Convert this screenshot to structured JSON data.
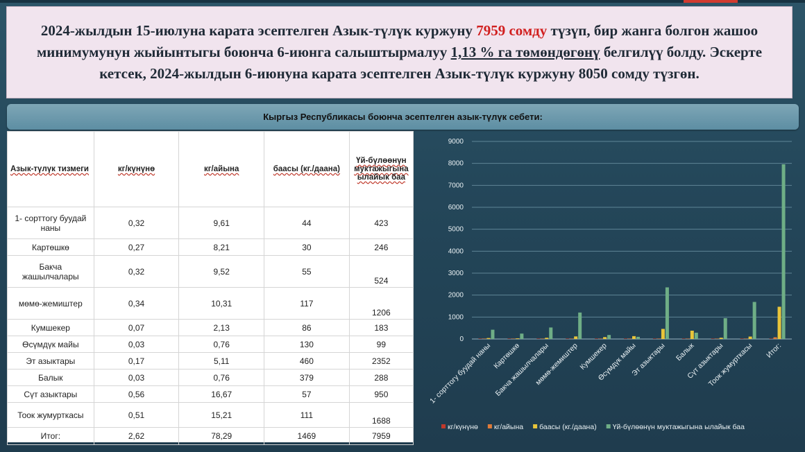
{
  "header": {
    "part1": "2024-жылдын 15-июлуна карата эсептелген Азык-түлүк куржуну ",
    "highlight": "7959 сомду",
    "part2": " түзүп, бир жанга болгон жашоо минимумунун жыйынтыгы боюнча 6-июнга салыштырмалуу ",
    "underlined": "1,13 % га төмөндөгөнү",
    "part3": " белгилүү болду. Эскерте кетсек, 2024-жылдын 6-июнуна карата эсептелген Азык-түлүк куржуну 8050 сомду түзгөн."
  },
  "table_title": "Кыргыз Республикасы боюнча эсептелген азык-түлүк себети:",
  "table": {
    "columns": [
      "Азык-түлүк тизмеги",
      "кг/күнүнө",
      "кг/айына",
      "баасы (кг./даана)",
      "Үй-бүлөөнүн муктажыгына ылайык баа"
    ],
    "rows": [
      [
        "1- сорттогу буудай наны",
        "0,32",
        "9,61",
        "44",
        "423"
      ],
      [
        "Картөшкө",
        "0,27",
        "8,21",
        "30",
        "246"
      ],
      [
        "Бакча жашылчалары",
        "0,32",
        "9,52",
        "55",
        "524"
      ],
      [
        "мөмө-жемиштер",
        "0,34",
        "10,31",
        "117",
        "1206"
      ],
      [
        "Кумшекер",
        "0,07",
        "2,13",
        "86",
        "183"
      ],
      [
        "Өсүмдүк майы",
        "0,03",
        "0,76",
        "130",
        "99"
      ],
      [
        "Эт азыктары",
        "0,17",
        "5,11",
        "460",
        "2352"
      ],
      [
        "Балык",
        "0,03",
        "0,76",
        "379",
        "288"
      ],
      [
        "Сүт азыктары",
        "0,56",
        "16,67",
        "57",
        "950"
      ],
      [
        "Тоок жумурткасы",
        "0,51",
        "15,21",
        "111",
        "1688"
      ],
      [
        "Итог:",
        "2,62",
        "78,29",
        "1469",
        "7959"
      ]
    ]
  },
  "chart_data": {
    "type": "bar",
    "categories": [
      "1- сорттогу буудай наны",
      "Картөшкө",
      "Бакча жашылчалары",
      "мөмө-жемиштер",
      "Кумшекер",
      "Өсүмдүк майы",
      "Эт азыктары",
      "Балык",
      "Сүт азыктары",
      "Тоок жумурткасы",
      "Итог:"
    ],
    "series": [
      {
        "name": "кг/күнүнө",
        "color": "#c0392b",
        "values": [
          0.32,
          0.27,
          0.32,
          0.34,
          0.07,
          0.03,
          0.17,
          0.03,
          0.56,
          0.51,
          2.62
        ]
      },
      {
        "name": "кг/айына",
        "color": "#e07b39",
        "values": [
          9.61,
          8.21,
          9.52,
          10.31,
          2.13,
          0.76,
          5.11,
          0.76,
          16.67,
          15.21,
          78.29
        ]
      },
      {
        "name": "баасы (кг./даана)",
        "color": "#e8c53a",
        "values": [
          44,
          30,
          55,
          117,
          86,
          130,
          460,
          379,
          57,
          111,
          1469
        ]
      },
      {
        "name": "Үй-бүлөөнүн муктажыгына ылайык баа",
        "color": "#6fae86",
        "values": [
          423,
          246,
          524,
          1206,
          183,
          99,
          2352,
          288,
          950,
          1688,
          7959
        ]
      }
    ],
    "yticks": [
      "0",
      "1000",
      "2000",
      "3000",
      "4000",
      "5000",
      "6000",
      "7000",
      "8000",
      "9000"
    ],
    "ylim": [
      0,
      9000
    ],
    "grid": true,
    "legend": "bottom"
  }
}
